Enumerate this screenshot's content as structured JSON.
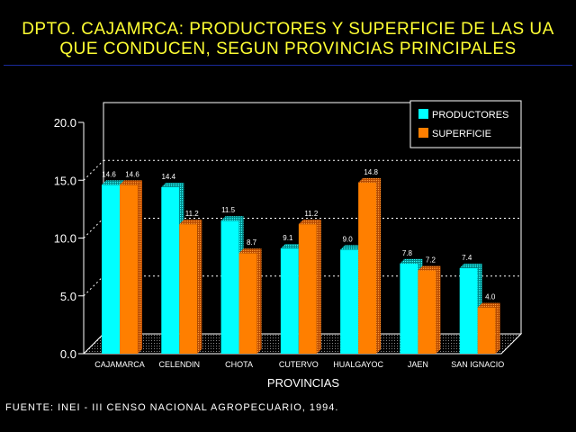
{
  "header": {
    "title_line1": "DPTO. CAJAMRCA: PRODUCTORES Y SUPERFICIE DE LAS UA",
    "title_line2": "QUE CONDUCEN, SEGUN PROVINCIAS PRINCIPALES"
  },
  "footer": {
    "source": "FUENTE: INEI - III CENSO NACIONAL AGROPECUARIO, 1994."
  },
  "colors": {
    "productores": "#00ffff",
    "superficie": "#ff7f00",
    "title": "#ffff33"
  },
  "chart_data": {
    "type": "bar",
    "title": "",
    "xlabel": "PROVINCIAS",
    "ylabel": "",
    "ylim": [
      0,
      20
    ],
    "yticks": [
      "0.0",
      "5.0",
      "10.0",
      "15.0",
      "20.0"
    ],
    "grid": true,
    "legend_position": "top-right",
    "categories": [
      "CAJAMARCA",
      "CELENDIN",
      "CHOTA",
      "CUTERVO",
      "HUALGAYOC",
      "JAEN",
      "SAN IGNACIO"
    ],
    "series": [
      {
        "name": "PRODUCTORES",
        "values": [
          14.6,
          14.4,
          11.5,
          9.1,
          9.0,
          7.8,
          7.4
        ],
        "labels": [
          "14.6",
          "14.4",
          "11.5",
          "9.1",
          "9.0",
          "7.8",
          "7.4"
        ]
      },
      {
        "name": "SUPERFICIE",
        "values": [
          14.6,
          11.2,
          8.7,
          11.2,
          14.8,
          7.2,
          4.0
        ],
        "labels": [
          "14.6",
          "11.2",
          "8.7",
          "11.2",
          "14.8",
          "7.2",
          "4.0"
        ]
      }
    ]
  }
}
